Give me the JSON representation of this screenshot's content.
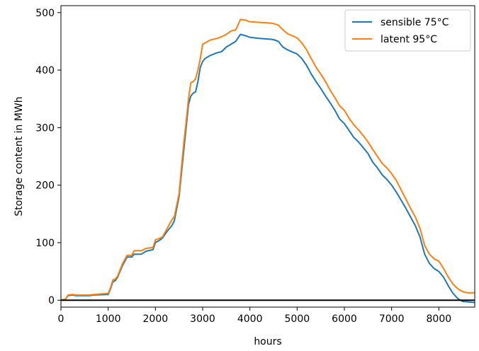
{
  "chart_data": {
    "type": "line",
    "title": "",
    "xlabel": "hours",
    "ylabel": "Storage content in MWh",
    "xlim": [
      0,
      8760
    ],
    "ylim": [
      -12,
      512
    ],
    "xticks": [
      0,
      1000,
      2000,
      3000,
      4000,
      5000,
      6000,
      7000,
      8000
    ],
    "yticks": [
      0,
      100,
      200,
      300,
      400,
      500
    ],
    "grid": false,
    "legend": "top-right",
    "hline": 0,
    "hline_color": "#000000",
    "series": [
      {
        "name": "sensible 75°C",
        "color": "#1f77b4",
        "points": [
          [
            0,
            0
          ],
          [
            100,
            2
          ],
          [
            150,
            8
          ],
          [
            250,
            9
          ],
          [
            300,
            8
          ],
          [
            600,
            8
          ],
          [
            700,
            9
          ],
          [
            1000,
            10
          ],
          [
            1050,
            20
          ],
          [
            1100,
            32
          ],
          [
            1150,
            34
          ],
          [
            1200,
            40
          ],
          [
            1300,
            60
          ],
          [
            1400,
            75
          ],
          [
            1500,
            75
          ],
          [
            1550,
            80
          ],
          [
            1700,
            80
          ],
          [
            1800,
            85
          ],
          [
            1950,
            88
          ],
          [
            2000,
            100
          ],
          [
            2100,
            105
          ],
          [
            2150,
            108
          ],
          [
            2250,
            120
          ],
          [
            2350,
            130
          ],
          [
            2400,
            138
          ],
          [
            2500,
            180
          ],
          [
            2550,
            220
          ],
          [
            2600,
            260
          ],
          [
            2650,
            300
          ],
          [
            2700,
            340
          ],
          [
            2750,
            355
          ],
          [
            2800,
            360
          ],
          [
            2850,
            362
          ],
          [
            2900,
            380
          ],
          [
            2950,
            405
          ],
          [
            3000,
            415
          ],
          [
            3050,
            420
          ],
          [
            3150,
            425
          ],
          [
            3300,
            430
          ],
          [
            3400,
            432
          ],
          [
            3500,
            440
          ],
          [
            3600,
            445
          ],
          [
            3700,
            450
          ],
          [
            3800,
            462
          ],
          [
            3900,
            460
          ],
          [
            4000,
            457
          ],
          [
            4200,
            455
          ],
          [
            4400,
            454
          ],
          [
            4500,
            453
          ],
          [
            4600,
            450
          ],
          [
            4700,
            440
          ],
          [
            4800,
            435
          ],
          [
            5000,
            428
          ],
          [
            5100,
            420
          ],
          [
            5200,
            408
          ],
          [
            5300,
            393
          ],
          [
            5400,
            380
          ],
          [
            5500,
            368
          ],
          [
            5600,
            355
          ],
          [
            5700,
            343
          ],
          [
            5800,
            330
          ],
          [
            5900,
            315
          ],
          [
            6000,
            307
          ],
          [
            6100,
            295
          ],
          [
            6200,
            283
          ],
          [
            6300,
            275
          ],
          [
            6400,
            265
          ],
          [
            6500,
            255
          ],
          [
            6600,
            240
          ],
          [
            6700,
            230
          ],
          [
            6800,
            218
          ],
          [
            6900,
            210
          ],
          [
            7000,
            200
          ],
          [
            7100,
            188
          ],
          [
            7200,
            174
          ],
          [
            7300,
            160
          ],
          [
            7400,
            145
          ],
          [
            7500,
            130
          ],
          [
            7600,
            110
          ],
          [
            7700,
            80
          ],
          [
            7800,
            64
          ],
          [
            7900,
            55
          ],
          [
            8000,
            50
          ],
          [
            8100,
            40
          ],
          [
            8200,
            25
          ],
          [
            8300,
            12
          ],
          [
            8400,
            3
          ],
          [
            8500,
            -2
          ],
          [
            8760,
            -4
          ]
        ]
      },
      {
        "name": "latent 95°C",
        "color": "#ff7f0e",
        "points": [
          [
            0,
            0
          ],
          [
            100,
            2
          ],
          [
            150,
            9
          ],
          [
            250,
            10
          ],
          [
            300,
            9
          ],
          [
            600,
            9
          ],
          [
            700,
            10
          ],
          [
            1000,
            12
          ],
          [
            1050,
            22
          ],
          [
            1100,
            35
          ],
          [
            1150,
            37
          ],
          [
            1200,
            42
          ],
          [
            1300,
            63
          ],
          [
            1400,
            78
          ],
          [
            1500,
            78
          ],
          [
            1550,
            86
          ],
          [
            1700,
            86
          ],
          [
            1800,
            90
          ],
          [
            1950,
            92
          ],
          [
            2000,
            105
          ],
          [
            2100,
            108
          ],
          [
            2150,
            110
          ],
          [
            2250,
            125
          ],
          [
            2350,
            140
          ],
          [
            2400,
            145
          ],
          [
            2500,
            185
          ],
          [
            2550,
            230
          ],
          [
            2600,
            272
          ],
          [
            2650,
            310
          ],
          [
            2700,
            350
          ],
          [
            2750,
            378
          ],
          [
            2800,
            380
          ],
          [
            2850,
            385
          ],
          [
            2900,
            400
          ],
          [
            2950,
            420
          ],
          [
            3000,
            445
          ],
          [
            3050,
            447
          ],
          [
            3150,
            452
          ],
          [
            3300,
            455
          ],
          [
            3400,
            458
          ],
          [
            3500,
            462
          ],
          [
            3600,
            468
          ],
          [
            3700,
            470
          ],
          [
            3800,
            488
          ],
          [
            3900,
            487
          ],
          [
            4000,
            484
          ],
          [
            4200,
            483
          ],
          [
            4400,
            482
          ],
          [
            4500,
            481
          ],
          [
            4600,
            478
          ],
          [
            4700,
            470
          ],
          [
            4800,
            463
          ],
          [
            5000,
            456
          ],
          [
            5100,
            447
          ],
          [
            5200,
            435
          ],
          [
            5300,
            420
          ],
          [
            5400,
            405
          ],
          [
            5500,
            393
          ],
          [
            5600,
            380
          ],
          [
            5700,
            365
          ],
          [
            5800,
            352
          ],
          [
            5900,
            338
          ],
          [
            6000,
            330
          ],
          [
            6100,
            316
          ],
          [
            6200,
            305
          ],
          [
            6300,
            296
          ],
          [
            6400,
            286
          ],
          [
            6500,
            275
          ],
          [
            6600,
            262
          ],
          [
            6700,
            250
          ],
          [
            6800,
            238
          ],
          [
            6900,
            230
          ],
          [
            7000,
            220
          ],
          [
            7100,
            208
          ],
          [
            7200,
            192
          ],
          [
            7300,
            176
          ],
          [
            7400,
            160
          ],
          [
            7500,
            145
          ],
          [
            7600,
            125
          ],
          [
            7700,
            95
          ],
          [
            7800,
            80
          ],
          [
            7900,
            72
          ],
          [
            8000,
            68
          ],
          [
            8100,
            55
          ],
          [
            8200,
            40
          ],
          [
            8300,
            28
          ],
          [
            8400,
            20
          ],
          [
            8500,
            15
          ],
          [
            8600,
            13
          ],
          [
            8760,
            13
          ]
        ]
      }
    ]
  }
}
